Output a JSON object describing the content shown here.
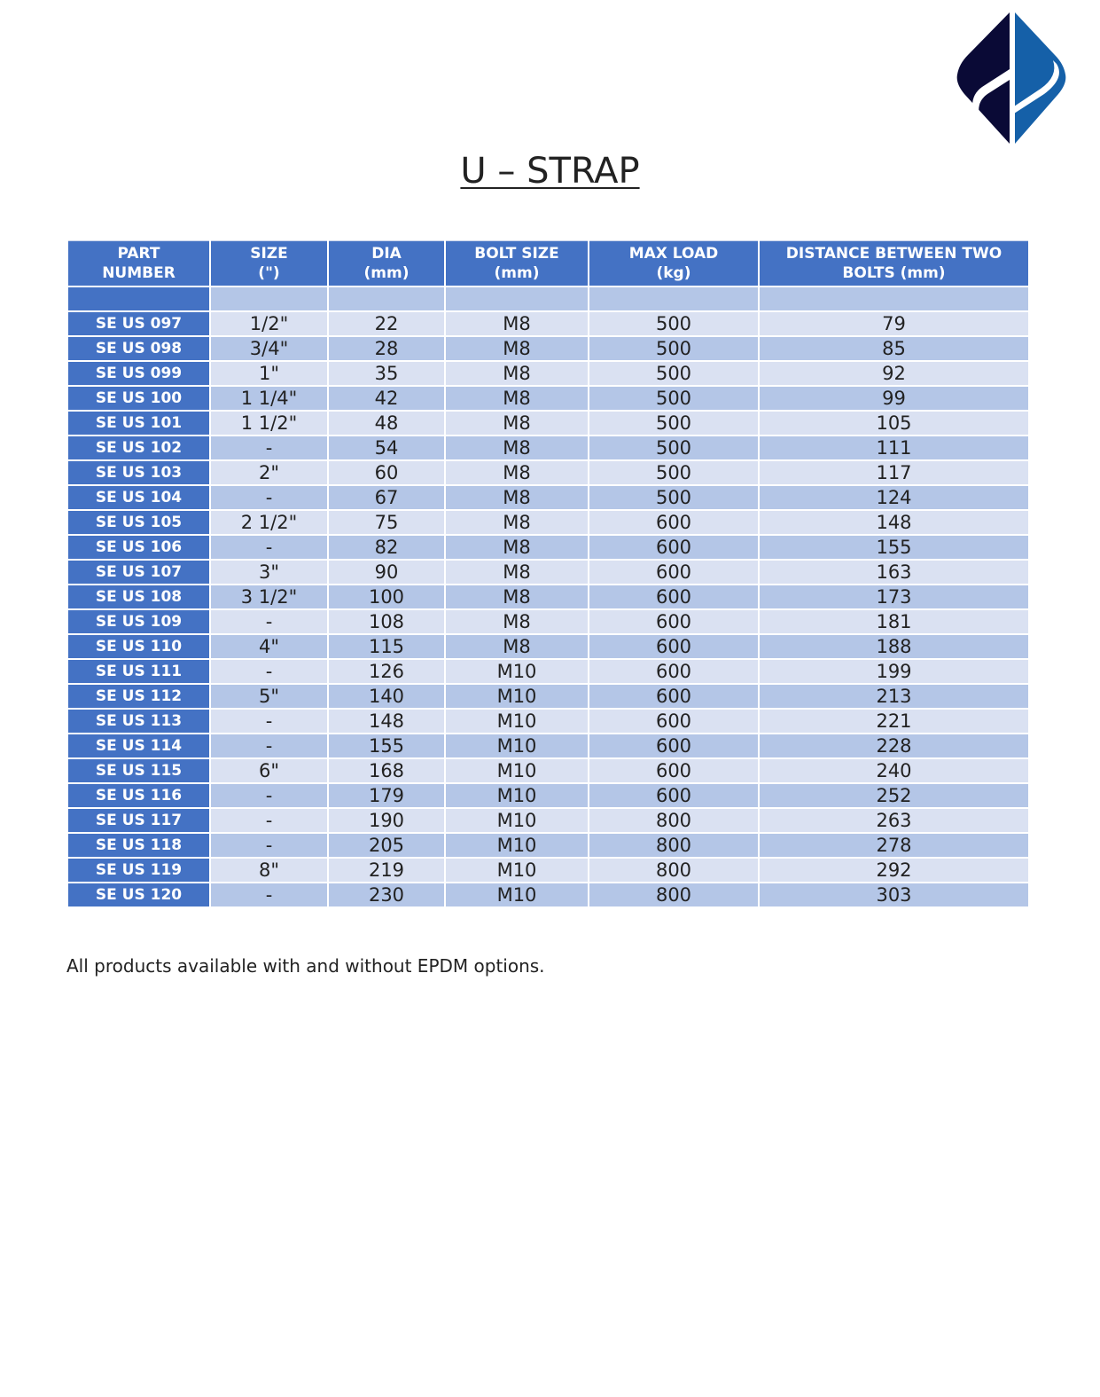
{
  "logo": {
    "colors": {
      "left": "#0A0A36",
      "right": "#1560A8"
    }
  },
  "title": "U – STRAP",
  "table": {
    "headers": [
      "PART\nNUMBER",
      "SIZE\n(\")",
      "DIA\n(mm)",
      "BOLT SIZE\n(mm)",
      "MAX LOAD\n(kg)",
      "DISTANCE BETWEEN TWO\nBOLTS (mm)"
    ],
    "rows": [
      [
        "SE US 097",
        "1/2\"",
        "22",
        "M8",
        "500",
        "79"
      ],
      [
        "SE US 098",
        "3/4\"",
        "28",
        "M8",
        "500",
        "85"
      ],
      [
        "SE US 099",
        "1\"",
        "35",
        "M8",
        "500",
        "92"
      ],
      [
        "SE US 100",
        "1 1/4\"",
        "42",
        "M8",
        "500",
        "99"
      ],
      [
        "SE US 101",
        "1 1/2\"",
        "48",
        "M8",
        "500",
        "105"
      ],
      [
        "SE US 102",
        "-",
        "54",
        "M8",
        "500",
        "111"
      ],
      [
        "SE US 103",
        "2\"",
        "60",
        "M8",
        "500",
        "117"
      ],
      [
        "SE US 104",
        "-",
        "67",
        "M8",
        "500",
        "124"
      ],
      [
        "SE US 105",
        "2 1/2\"",
        "75",
        "M8",
        "600",
        "148"
      ],
      [
        "SE US 106",
        "-",
        "82",
        "M8",
        "600",
        "155"
      ],
      [
        "SE US 107",
        "3\"",
        "90",
        "M8",
        "600",
        "163"
      ],
      [
        "SE US 108",
        "3 1/2\"",
        "100",
        "M8",
        "600",
        "173"
      ],
      [
        "SE US 109",
        "-",
        "108",
        "M8",
        "600",
        "181"
      ],
      [
        "SE US 110",
        "4\"",
        "115",
        "M8",
        "600",
        "188"
      ],
      [
        "SE US 111",
        "-",
        "126",
        "M10",
        "600",
        "199"
      ],
      [
        "SE US 112",
        "5\"",
        "140",
        "M10",
        "600",
        "213"
      ],
      [
        "SE US 113",
        "-",
        "148",
        "M10",
        "600",
        "221"
      ],
      [
        "SE US 114",
        "-",
        "155",
        "M10",
        "600",
        "228"
      ],
      [
        "SE US 115",
        "6\"",
        "168",
        "M10",
        "600",
        "240"
      ],
      [
        "SE US 116",
        "-",
        "179",
        "M10",
        "600",
        "252"
      ],
      [
        "SE US 117",
        "-",
        "190",
        "M10",
        "800",
        "263"
      ],
      [
        "SE US 118",
        "-",
        "205",
        "M10",
        "800",
        "278"
      ],
      [
        "SE US 119",
        "8\"",
        "219",
        "M10",
        "800",
        "292"
      ],
      [
        "SE US 120",
        "-",
        "230",
        "M10",
        "800",
        "303"
      ]
    ]
  },
  "note": "All products available with and without EPDM options."
}
